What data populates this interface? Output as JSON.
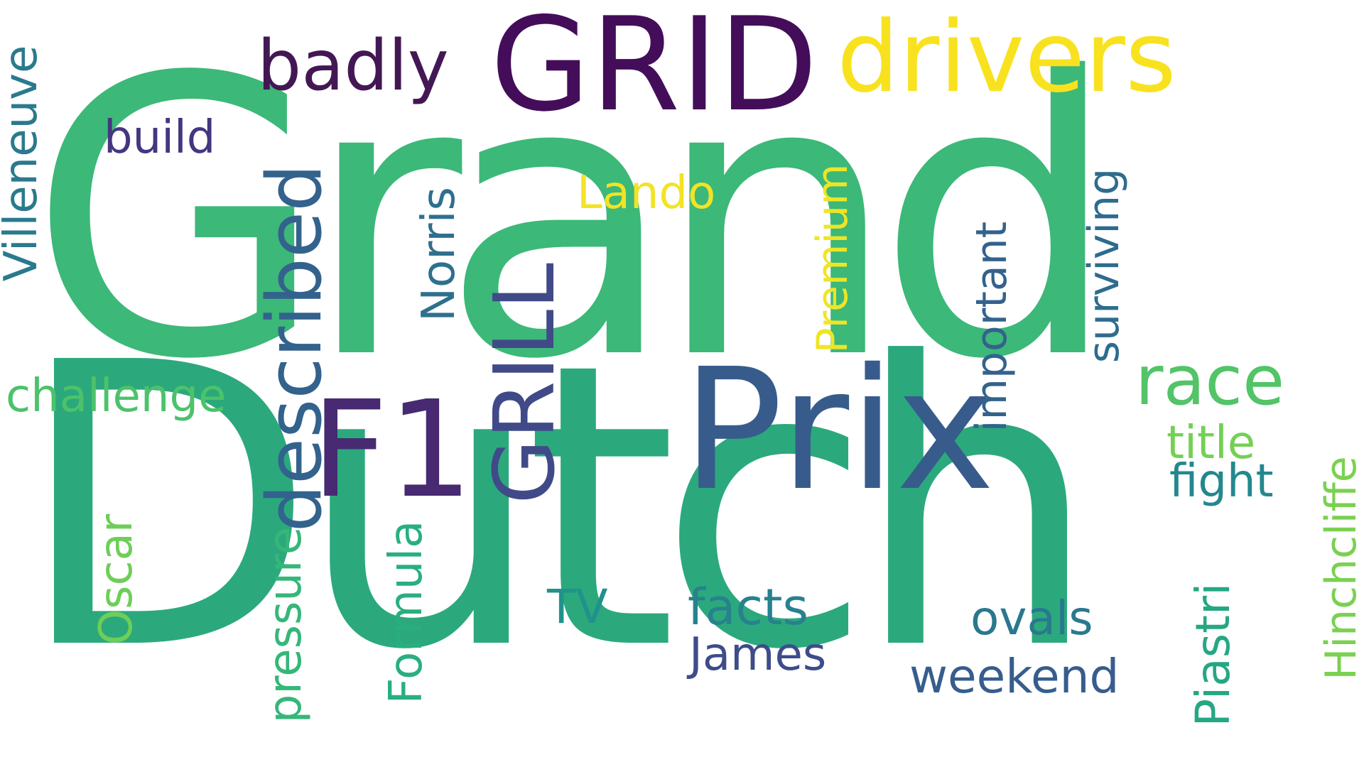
{
  "cloud": {
    "words": [
      {
        "text": "Grand",
        "color": "#3cb878",
        "orientation": "horizontal"
      },
      {
        "text": "Dutch",
        "color": "#2ba97d",
        "orientation": "horizontal"
      },
      {
        "text": "GRID",
        "color": "#440d5a",
        "orientation": "horizontal"
      },
      {
        "text": "drivers",
        "color": "#f8e21f",
        "orientation": "horizontal"
      },
      {
        "text": "Prix",
        "color": "#375c8c",
        "orientation": "horizontal"
      },
      {
        "text": "F1",
        "color": "#472a71",
        "orientation": "horizontal"
      },
      {
        "text": "GRILL",
        "color": "#414a88",
        "orientation": "vertical"
      },
      {
        "text": "described",
        "color": "#33628d",
        "orientation": "vertical"
      },
      {
        "text": "badly",
        "color": "#431754",
        "orientation": "horizontal"
      },
      {
        "text": "build",
        "color": "#453681",
        "orientation": "horizontal"
      },
      {
        "text": "Villeneuve",
        "color": "#2a7a8e",
        "orientation": "vertical"
      },
      {
        "text": "challenge",
        "color": "#4cc26b",
        "orientation": "horizontal"
      },
      {
        "text": "race",
        "color": "#53c467",
        "orientation": "horizontal"
      },
      {
        "text": "Lando",
        "color": "#f2e325",
        "orientation": "horizontal"
      },
      {
        "text": "Norris",
        "color": "#2e708e",
        "orientation": "vertical"
      },
      {
        "text": "Premium",
        "color": "#eee526",
        "orientation": "vertical"
      },
      {
        "text": "important",
        "color": "#33628d",
        "orientation": "vertical"
      },
      {
        "text": "surviving",
        "color": "#2e6c8e",
        "orientation": "vertical"
      },
      {
        "text": "title",
        "color": "#74d055",
        "orientation": "horizontal"
      },
      {
        "text": "fight",
        "color": "#23888e",
        "orientation": "horizontal"
      },
      {
        "text": "Hinchcliffe",
        "color": "#7ad151",
        "orientation": "vertical"
      },
      {
        "text": "Oscar",
        "color": "#6ece58",
        "orientation": "vertical"
      },
      {
        "text": "pressure",
        "color": "#35b779",
        "orientation": "vertical"
      },
      {
        "text": "Formula",
        "color": "#29af7f",
        "orientation": "vertical"
      },
      {
        "text": "TV",
        "color": "#20928c",
        "orientation": "horizontal"
      },
      {
        "text": "facts",
        "color": "#27818e",
        "orientation": "horizontal"
      },
      {
        "text": "James",
        "color": "#3e4c8a",
        "orientation": "horizontal"
      },
      {
        "text": "ovals",
        "color": "#2a788e",
        "orientation": "horizontal"
      },
      {
        "text": "weekend",
        "color": "#365d8d",
        "orientation": "horizontal"
      },
      {
        "text": "Piastri",
        "color": "#26a784",
        "orientation": "vertical"
      }
    ]
  }
}
